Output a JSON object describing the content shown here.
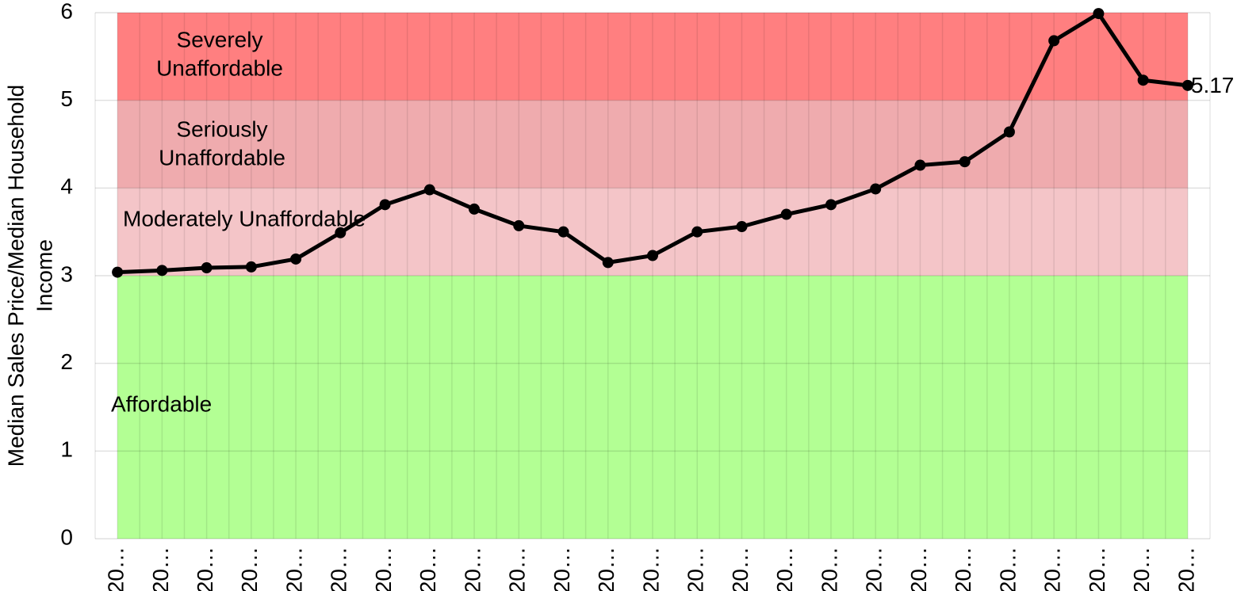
{
  "chart_data": {
    "type": "line",
    "y_label": [
      "Median Sales Price/Median Household",
      "Income"
    ],
    "categories": [
      "20…",
      "20…",
      "20…",
      "20…",
      "20…",
      "20…",
      "20…",
      "20…",
      "20…",
      "20…",
      "20…",
      "20…",
      "20…",
      "20…",
      "20…",
      "20…",
      "20…",
      "20…",
      "20…",
      "20…",
      "20…",
      "20…",
      "20…",
      "20…",
      "20…"
    ],
    "series": [
      {
        "color": "#000000",
        "values": [
          3.04,
          3.06,
          3.09,
          3.1,
          3.19,
          3.49,
          3.81,
          3.98,
          3.76,
          3.57,
          3.5,
          3.15,
          3.23,
          3.5,
          3.56,
          3.7,
          3.81,
          3.99,
          4.26,
          4.3,
          4.64,
          5.68,
          5.99,
          5.23,
          5.17
        ]
      }
    ],
    "bands": [
      {
        "range": [
          0,
          3
        ],
        "color": "#b3ff94",
        "label": [
          "Affordable"
        ]
      },
      {
        "range": [
          3,
          4
        ],
        "color": "#f4c5c8",
        "label": [
          "Moderately Unaffordable"
        ]
      },
      {
        "range": [
          4,
          5
        ],
        "color": "#efabae",
        "label": [
          "Seriously",
          "Unaffordable"
        ]
      },
      {
        "range": [
          5,
          6
        ],
        "color": "#ff7f80",
        "label": [
          "Severely",
          "Unaffordable"
        ]
      }
    ],
    "data_labels": "last",
    "ylim": [
      0,
      6
    ],
    "yticks": [
      0,
      1,
      2,
      3,
      4,
      5,
      6
    ],
    "grid": true
  }
}
